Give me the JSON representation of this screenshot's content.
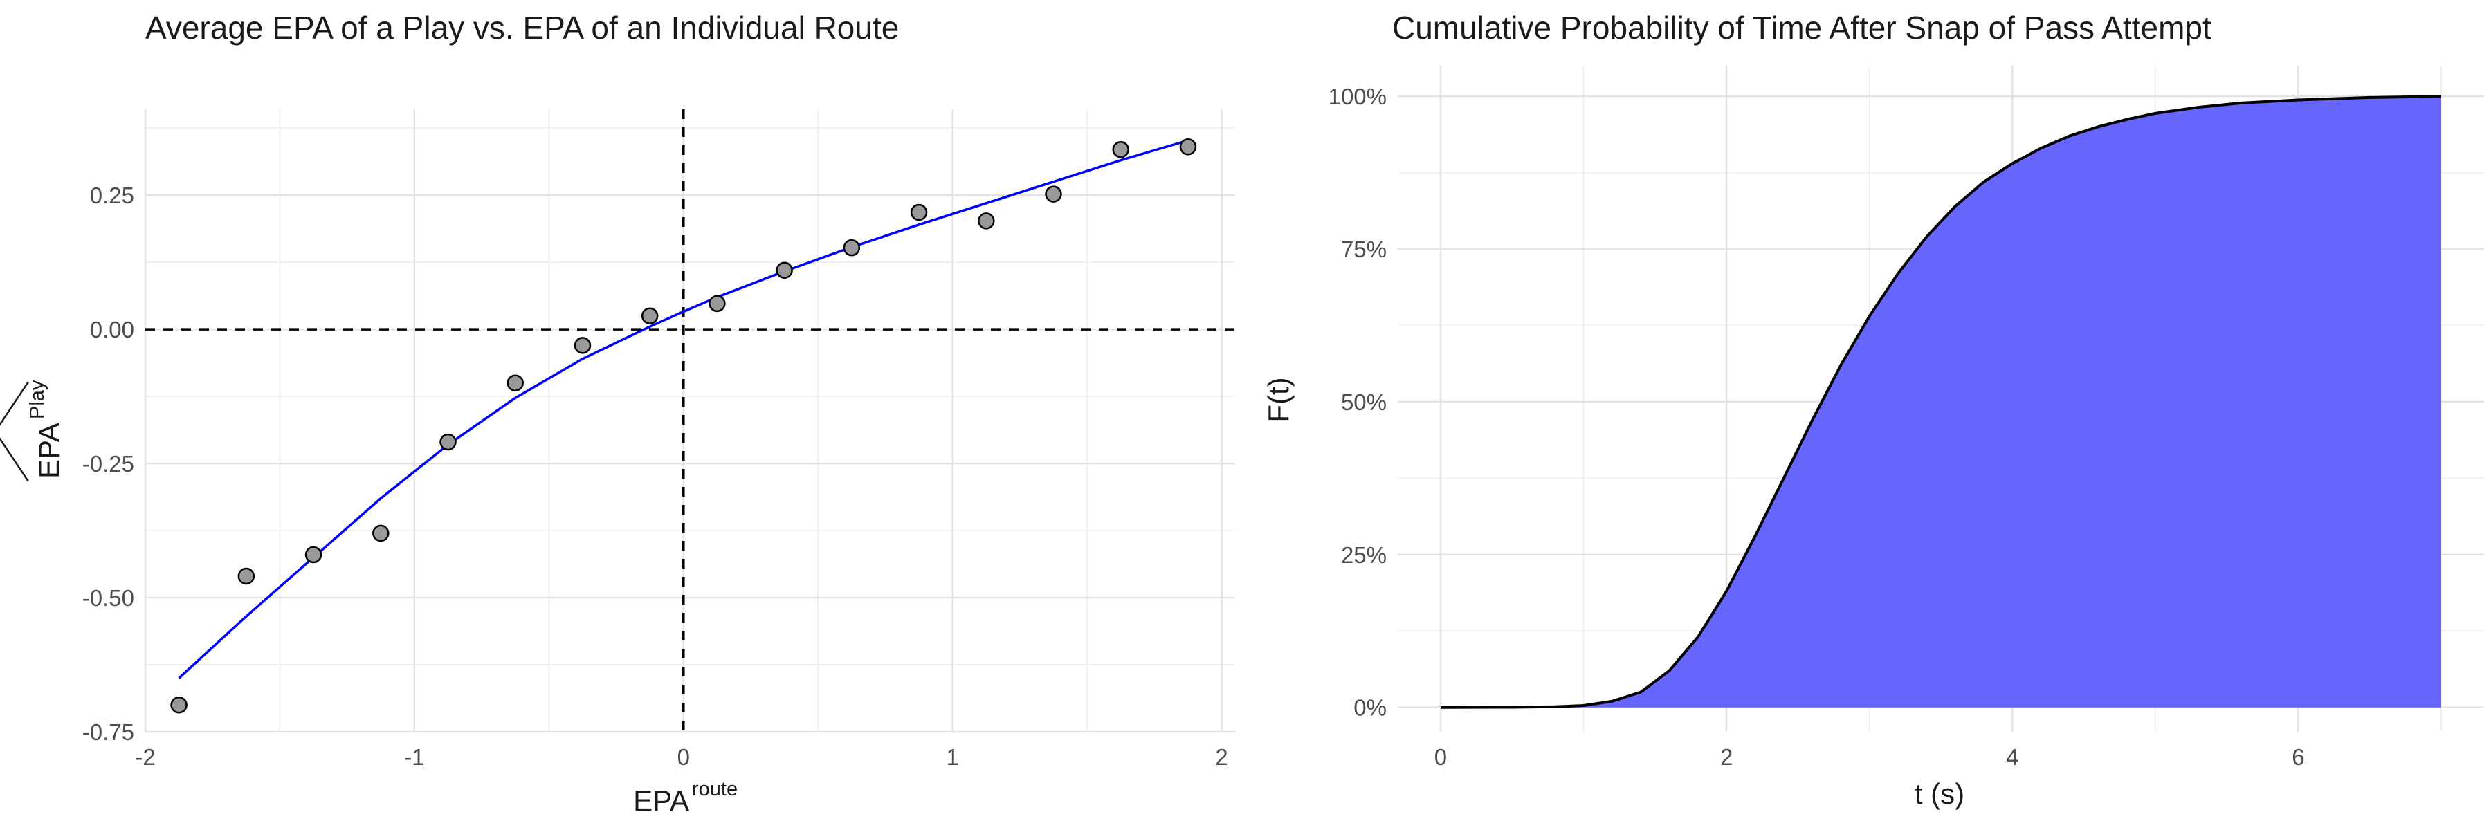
{
  "chart_data": [
    {
      "type": "scatter",
      "title": "Average EPA of a Play vs. EPA of an Individual Route",
      "xlabel": {
        "base": "EPA",
        "sup": "route"
      },
      "ylabel": {
        "base": "EPA",
        "sup": "Play"
      },
      "xlim": [
        -2.0,
        2.05
      ],
      "ylim": [
        -0.75,
        0.41
      ],
      "x_ticks": [
        -2,
        -1,
        0,
        1,
        2
      ],
      "x_tick_labels": [
        "-2",
        "-1",
        "0",
        "1",
        "2"
      ],
      "y_ticks": [
        -0.75,
        -0.5,
        -0.25,
        0.0,
        0.25
      ],
      "y_tick_labels": [
        "-0.75",
        "-0.50",
        "-0.25",
        "0.00",
        "0.25"
      ],
      "grid": true,
      "reference_lines": {
        "x": 0,
        "y": 0,
        "style": "dashed"
      },
      "points": {
        "x": [
          -1.875,
          -1.625,
          -1.375,
          -1.125,
          -0.875,
          -0.625,
          -0.375,
          -0.125,
          0.125,
          0.375,
          0.625,
          0.875,
          1.125,
          1.375,
          1.625,
          1.875
        ],
        "y": [
          -0.7,
          -0.46,
          -0.42,
          -0.38,
          -0.21,
          -0.1,
          -0.03,
          0.025,
          0.048,
          0.11,
          0.152,
          0.218,
          0.202,
          0.252,
          0.335,
          0.34
        ],
        "color": "#999999"
      },
      "fit_line": {
        "x": [
          -1.875,
          -1.625,
          -1.375,
          -1.125,
          -0.875,
          -0.625,
          -0.375,
          -0.125,
          0.0,
          0.125,
          0.375,
          0.625,
          0.875,
          1.125,
          1.375,
          1.625,
          1.875
        ],
        "y": [
          -0.65,
          -0.535,
          -0.425,
          -0.315,
          -0.215,
          -0.128,
          -0.055,
          0.005,
          0.033,
          0.06,
          0.108,
          0.153,
          0.195,
          0.235,
          0.275,
          0.315,
          0.352
        ],
        "color": "#0000ff"
      }
    },
    {
      "type": "area",
      "title": "Cumulative Probability of Time After Snap of Pass Attempt",
      "xlabel": "t (s)",
      "ylabel": "F(t)",
      "xlim": [
        -0.3,
        7.3
      ],
      "ylim": [
        -0.04,
        1.05
      ],
      "x_ticks": [
        0,
        2,
        4,
        6
      ],
      "x_tick_labels": [
        "0",
        "2",
        "4",
        "6"
      ],
      "y_ticks": [
        0,
        0.25,
        0.5,
        0.75,
        1.0
      ],
      "y_tick_labels": [
        "0%",
        "25%",
        "50%",
        "75%",
        "100%"
      ],
      "grid": true,
      "curve": {
        "x": [
          0,
          0.5,
          0.8,
          1.0,
          1.2,
          1.4,
          1.6,
          1.8,
          2.0,
          2.2,
          2.4,
          2.6,
          2.8,
          3.0,
          3.2,
          3.4,
          3.6,
          3.8,
          4.0,
          4.2,
          4.4,
          4.6,
          4.8,
          5.0,
          5.3,
          5.6,
          6.0,
          6.5,
          7.0
        ],
        "y": [
          0,
          0.0002,
          0.001,
          0.003,
          0.01,
          0.025,
          0.06,
          0.115,
          0.19,
          0.28,
          0.375,
          0.47,
          0.56,
          0.64,
          0.71,
          0.77,
          0.82,
          0.86,
          0.89,
          0.915,
          0.935,
          0.95,
          0.962,
          0.972,
          0.982,
          0.989,
          0.994,
          0.998,
          1.0
        ],
        "line_color": "#000000",
        "fill_color": "#6666ff"
      }
    }
  ]
}
